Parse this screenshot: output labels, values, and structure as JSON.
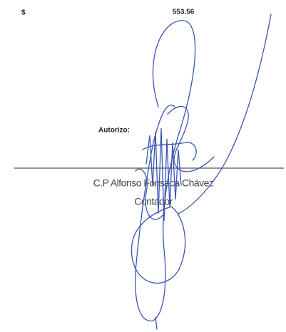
{
  "amount": {
    "currency": "$",
    "value": "553.56"
  },
  "signature_block": {
    "label": "Autorizo:",
    "name": "C.P Alfonso Fonseca Chávez",
    "role": "Contador"
  }
}
